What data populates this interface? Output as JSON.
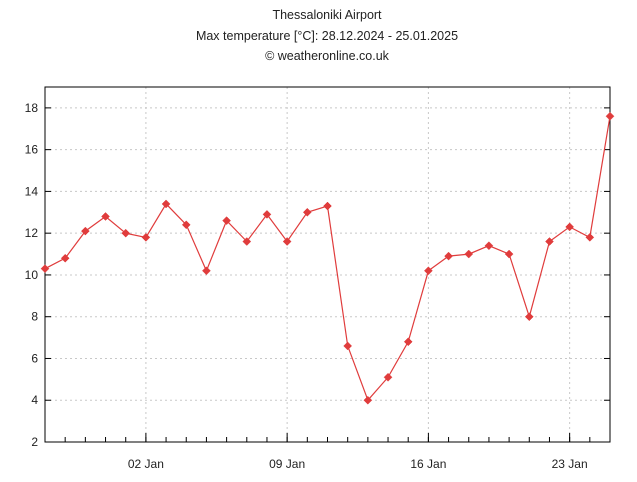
{
  "header": {
    "station": "Thessaloniki Airport",
    "subtitle": "Max temperature [°C]: 28.12.2024 - 25.01.2025",
    "copyright": "© weatheronline.co.uk"
  },
  "colors": {
    "series": "#e03c3c",
    "grid": "#c8c8c8",
    "axis": "#000000"
  },
  "chart_data": {
    "type": "line",
    "title": "Thessaloniki Airport",
    "subtitle": "Max temperature [°C]: 28.12.2024 - 25.01.2025",
    "x": [
      "28.12.2024",
      "29.12.2024",
      "30.12.2024",
      "31.12.2024",
      "01.01.2025",
      "02.01.2025",
      "03.01.2025",
      "04.01.2025",
      "05.01.2025",
      "06.01.2025",
      "07.01.2025",
      "08.01.2025",
      "09.01.2025",
      "10.01.2025",
      "11.01.2025",
      "12.01.2025",
      "13.01.2025",
      "14.01.2025",
      "15.01.2025",
      "16.01.2025",
      "17.01.2025",
      "18.01.2025",
      "19.01.2025",
      "20.01.2025",
      "21.01.2025",
      "22.01.2025",
      "23.01.2025",
      "24.01.2025",
      "25.01.2025"
    ],
    "series": [
      {
        "values": [
          10.3,
          10.8,
          12.1,
          12.8,
          12.0,
          11.8,
          13.4,
          12.4,
          10.2,
          12.6,
          11.6,
          12.9,
          11.6,
          13.0,
          13.3,
          6.6,
          4.0,
          5.1,
          6.8,
          10.2,
          10.9,
          11.0,
          11.4,
          11.0,
          8.0,
          11.6,
          12.3,
          11.8,
          17.6
        ]
      }
    ],
    "ylim": [
      2,
      19
    ],
    "yticks": [
      2,
      4,
      6,
      8,
      10,
      12,
      14,
      16,
      18
    ],
    "xticks": [
      {
        "date": "02.01.2025",
        "label": "02 Jan"
      },
      {
        "date": "09.01.2025",
        "label": "09 Jan"
      },
      {
        "date": "16.01.2025",
        "label": "16 Jan"
      },
      {
        "date": "23.01.2025",
        "label": "23 Jan"
      }
    ],
    "grid": true,
    "legend": "none"
  }
}
